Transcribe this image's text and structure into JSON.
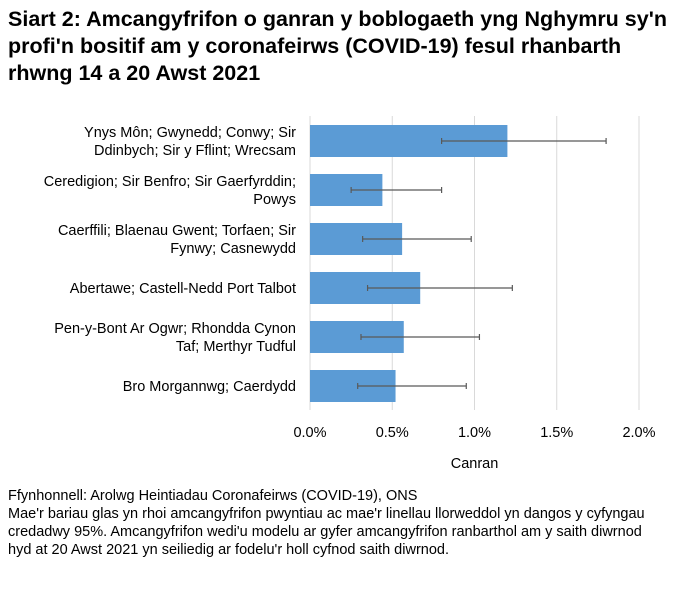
{
  "title": "Siart 2: Amcangyfrifon o ganran y boblogaeth yng Nghymru sy'n profi'n bositif am y coronafeirws (COVID-19) fesul rhanbarth rhwng 14 a 20 Awst 2021",
  "footer": {
    "source": "Ffynhonnell: Arolwg Heintiadau Coronafeirws (COVID-19), ONS",
    "note": "Mae'r bariau glas yn rhoi amcangyfrifon pwyntiau ac mae'r linellau llorweddol yn dangos y cyfyngau credadwy 95%. Amcangyfrifon wedi'u modelu ar gyfer amcangyfrifon ranbarthol am y saith diwrnod hyd at 20 Awst 2021 yn seiliedig ar fodelu'r holl cyfnod saith diwrnod."
  },
  "chart_data": {
    "type": "bar",
    "orientation": "horizontal",
    "categories": [
      [
        "Ynys Môn; Gwynedd; Conwy; Sir",
        "Ddinbych; Sir y Fflint; Wrecsam"
      ],
      [
        "Ceredigion; Sir Benfro; Sir Gaerfyrddin;",
        "Powys"
      ],
      [
        "Caerffili; Blaenau Gwent; Torfaen; Sir",
        "Fynwy; Casnewydd"
      ],
      [
        "Abertawe; Castell-Nedd Port Talbot"
      ],
      [
        "Pen-y-Bont Ar Ogwr; Rhondda Cynon",
        "Taf; Merthyr Tudful"
      ],
      [
        "Bro Morgannwg; Caerdydd"
      ]
    ],
    "values": [
      1.2,
      0.44,
      0.56,
      0.67,
      0.57,
      0.52
    ],
    "lower": [
      0.8,
      0.25,
      0.32,
      0.35,
      0.31,
      0.29
    ],
    "upper": [
      1.8,
      0.8,
      0.98,
      1.23,
      1.03,
      0.95
    ],
    "xlabel": "Canran",
    "xlim": [
      0,
      2.0
    ],
    "ticks": [
      "0.0%",
      "0.5%",
      "1.0%",
      "1.5%",
      "2.0%"
    ],
    "tick_values": [
      0,
      0.5,
      1.0,
      1.5,
      2.0
    ],
    "grid": true,
    "colors": {
      "bar": "#5b9bd5",
      "error": "#595959",
      "grid": "#d9d9d9"
    }
  }
}
